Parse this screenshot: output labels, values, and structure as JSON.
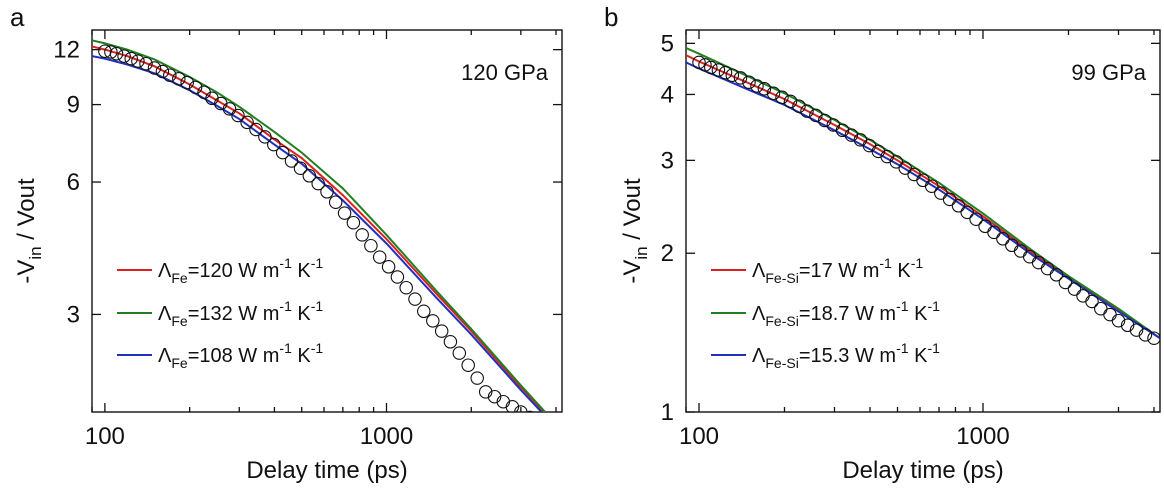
{
  "chart_data": [
    {
      "panel": "a",
      "type": "scatter",
      "annotation": "120 GPa",
      "xlabel": "Delay time (ps)",
      "ylabel": {
        "prefix": "-V",
        "sub": "in",
        "suffix": " / Vout"
      },
      "xscale": "log",
      "yscale": "log",
      "xlim": [
        90,
        4200
      ],
      "ylim": [
        1.8,
        13.3
      ],
      "xticks": [
        100,
        1000
      ],
      "xtick_labels": [
        "100",
        "1000"
      ],
      "yticks": [
        3,
        6,
        9,
        12
      ],
      "ytick_labels": [
        "3",
        "6",
        "9",
        "12"
      ],
      "grid": false,
      "legend_position": "bottom-left",
      "points": {
        "x": [
          100,
          105,
          110,
          117,
          124,
          131,
          140,
          150,
          160,
          170,
          183,
          196,
          210,
          225,
          240,
          258,
          277,
          297,
          320,
          344,
          370,
          398,
          428,
          460,
          495,
          532,
          572,
          615,
          660,
          710,
          763,
          820,
          880,
          946,
          1017,
          1093,
          1175,
          1263,
          1357,
          1460,
          1570,
          1687,
          1813,
          1950,
          2100,
          2250,
          2420,
          2600,
          2800,
          3000,
          3230,
          3470
        ],
        "y": [
          11.9,
          11.85,
          11.75,
          11.6,
          11.45,
          11.3,
          11.15,
          10.9,
          10.7,
          10.5,
          10.3,
          10.1,
          9.85,
          9.6,
          9.3,
          9.05,
          8.8,
          8.5,
          8.2,
          7.9,
          7.6,
          7.3,
          7.0,
          6.7,
          6.45,
          6.2,
          5.95,
          5.7,
          5.4,
          5.1,
          4.85,
          4.55,
          4.3,
          4.05,
          3.85,
          3.65,
          3.45,
          3.25,
          3.05,
          2.9,
          2.75,
          2.6,
          2.45,
          2.3,
          2.15,
          2.0,
          1.95,
          1.9,
          1.85,
          1.8,
          1.75,
          1.72
        ]
      },
      "series": [
        {
          "name": "ΛFe=120 W m-1 K-1",
          "label": {
            "sym": "Λ",
            "sub": "Fe",
            "mid": "=120 W m",
            "sup1": "-1",
            "sp": " K",
            "sup2": "-1"
          },
          "color": "#e02020",
          "x": [
            90,
            100,
            120,
            150,
            200,
            250,
            300,
            400,
            500,
            700,
            1000,
            1500,
            2000,
            3000,
            4000
          ],
          "y": [
            12.2,
            12.0,
            11.6,
            11.0,
            10.0,
            9.2,
            8.6,
            7.5,
            6.8,
            5.6,
            4.45,
            3.35,
            2.75,
            2.05,
            1.68
          ]
        },
        {
          "name": "ΛFe=132 W m-1 K-1",
          "label": {
            "sym": "Λ",
            "sub": "Fe",
            "mid": "=132 W m",
            "sup1": "-1",
            "sp": " K",
            "sup2": "-1"
          },
          "color": "#208020",
          "x": [
            90,
            100,
            120,
            150,
            200,
            250,
            300,
            400,
            500,
            700,
            1000,
            1500,
            2000,
            3000,
            4000
          ],
          "y": [
            12.6,
            12.4,
            12.0,
            11.4,
            10.4,
            9.6,
            8.9,
            7.8,
            7.0,
            5.8,
            4.55,
            3.4,
            2.78,
            2.07,
            1.69
          ]
        },
        {
          "name": "ΛFe=108 W m-1 K-1",
          "label": {
            "sym": "Λ",
            "sub": "Fe",
            "mid": "=108 W m",
            "sup1": "-1",
            "sp": " K",
            "sup2": "-1"
          },
          "color": "#2030c0",
          "x": [
            90,
            100,
            120,
            150,
            200,
            250,
            300,
            400,
            500,
            700,
            1000,
            1500,
            2000,
            3000,
            4000
          ],
          "y": [
            11.6,
            11.45,
            11.1,
            10.6,
            9.7,
            8.95,
            8.35,
            7.3,
            6.6,
            5.45,
            4.35,
            3.28,
            2.7,
            2.02,
            1.66
          ]
        }
      ]
    },
    {
      "panel": "b",
      "type": "scatter",
      "annotation": "99 GPa",
      "xlabel": "Delay time (ps)",
      "ylabel": {
        "prefix": "-V",
        "sub": "in",
        "suffix": " / Vout"
      },
      "xscale": "log",
      "yscale": "log",
      "xlim": [
        90,
        4200
      ],
      "ylim": [
        1.0,
        5.3
      ],
      "xticks": [
        100,
        1000
      ],
      "xtick_labels": [
        "100",
        "1000"
      ],
      "yticks": [
        1,
        2,
        3,
        4,
        5
      ],
      "ytick_labels": [
        "1",
        "2",
        "3",
        "4",
        "5"
      ],
      "grid": false,
      "legend_position": "bottom-left",
      "points": {
        "x": [
          100,
          105,
          110,
          117,
          124,
          131,
          140,
          150,
          160,
          170,
          183,
          196,
          210,
          225,
          240,
          258,
          277,
          297,
          320,
          344,
          370,
          398,
          428,
          460,
          495,
          532,
          572,
          615,
          660,
          710,
          763,
          820,
          880,
          946,
          1017,
          1093,
          1175,
          1263,
          1357,
          1460,
          1570,
          1687,
          1813,
          1950,
          2100,
          2250,
          2420,
          2600,
          2800,
          3000,
          3230,
          3470,
          3730,
          4000
        ],
        "y": [
          4.6,
          4.55,
          4.5,
          4.45,
          4.4,
          4.35,
          4.3,
          4.22,
          4.15,
          4.1,
          4.02,
          3.95,
          3.88,
          3.8,
          3.72,
          3.65,
          3.57,
          3.5,
          3.42,
          3.35,
          3.28,
          3.2,
          3.12,
          3.05,
          2.98,
          2.9,
          2.82,
          2.75,
          2.68,
          2.6,
          2.53,
          2.46,
          2.39,
          2.32,
          2.25,
          2.19,
          2.13,
          2.07,
          2.02,
          1.97,
          1.92,
          1.87,
          1.82,
          1.76,
          1.71,
          1.66,
          1.62,
          1.57,
          1.53,
          1.49,
          1.46,
          1.43,
          1.4,
          1.38
        ]
      },
      "series": [
        {
          "name": "ΛFe-Si=17 W m-1 K-1",
          "label": {
            "sym": "Λ",
            "sub": "Fe-Si",
            "mid": "=17 W m",
            "sup1": "-1",
            "sp": " K",
            "sup2": "-1"
          },
          "color": "#e02020",
          "x": [
            90,
            100,
            150,
            200,
            300,
            400,
            500,
            700,
            1000,
            1500,
            2000,
            3000,
            4200
          ],
          "y": [
            4.75,
            4.62,
            4.2,
            3.92,
            3.5,
            3.22,
            3.0,
            2.68,
            2.35,
            2.0,
            1.8,
            1.56,
            1.38
          ]
        },
        {
          "name": "ΛFe-Si=18.7 W m-1 K-1",
          "label": {
            "sym": "Λ",
            "sub": "Fe-Si",
            "mid": "=18.7 W m",
            "sup1": "-1",
            "sp": " K",
            "sup2": "-1"
          },
          "color": "#208020",
          "x": [
            90,
            100,
            150,
            200,
            300,
            400,
            500,
            700,
            1000,
            1500,
            2000,
            3000,
            4200
          ],
          "y": [
            4.9,
            4.78,
            4.32,
            4.02,
            3.58,
            3.28,
            3.05,
            2.72,
            2.38,
            2.02,
            1.81,
            1.57,
            1.38
          ]
        },
        {
          "name": "ΛFe-Si=15.3 W m-1 K-1",
          "label": {
            "sym": "Λ",
            "sub": "Fe-Si",
            "mid": "=15.3 W m",
            "sup1": "-1",
            "sp": " K",
            "sup2": "-1"
          },
          "color": "#2030c0",
          "x": [
            90,
            100,
            150,
            200,
            300,
            400,
            500,
            700,
            1000,
            1500,
            2000,
            3000,
            4200
          ],
          "y": [
            4.6,
            4.48,
            4.08,
            3.82,
            3.42,
            3.15,
            2.95,
            2.64,
            2.32,
            1.98,
            1.79,
            1.55,
            1.38
          ]
        }
      ]
    }
  ]
}
